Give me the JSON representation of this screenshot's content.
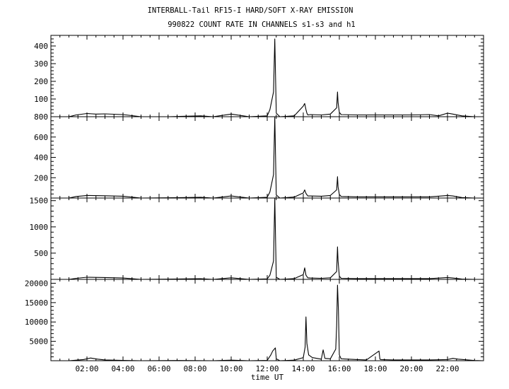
{
  "title": "INTERBALL-Tail RF15-I HARD/SOFT X-RAY EMISSION",
  "subtitle": "990822  COUNT RATE IN CHANNELS s1-s3 and h1",
  "chart_data": {
    "type": "line",
    "xlabel": "time UT",
    "xlim": [
      0.0,
      24.0
    ],
    "x_ticks": [
      2,
      4,
      6,
      8,
      10,
      12,
      14,
      16,
      18,
      20,
      22
    ],
    "x_tick_labels": [
      "02:00",
      "04:00",
      "06:00",
      "08:00",
      "10:00",
      "12:00",
      "14:00",
      "16:00",
      "18:00",
      "20:00",
      "22:00"
    ],
    "panels": [
      {
        "name": "s1",
        "ylim": [
          0,
          460
        ],
        "y_ticks": [
          100,
          200,
          300,
          400
        ],
        "y_tick_labels": [
          "100",
          "200",
          "300",
          "400"
        ],
        "x": [
          0.0,
          1.0,
          1.2,
          1.4,
          2.0,
          2.5,
          3.0,
          4.0,
          5.0,
          6.5,
          7.5,
          8.3,
          9.0,
          10.0,
          11.0,
          12.0,
          12.15,
          12.35,
          12.42,
          12.5,
          12.7,
          13.5,
          14.0,
          14.08,
          14.15,
          14.2,
          14.25,
          14.4,
          15.0,
          15.5,
          15.85,
          15.9,
          15.93,
          16.0,
          16.1,
          17.0,
          18.0,
          19.0,
          20.0,
          21.0,
          21.5,
          22.0,
          22.3,
          22.8,
          23.5,
          24.0
        ],
        "y": [
          0,
          0,
          5,
          10,
          18,
          15,
          16,
          12,
          0,
          0,
          3,
          5,
          0,
          15,
          0,
          5,
          40,
          140,
          440,
          20,
          0,
          5,
          60,
          75,
          40,
          20,
          10,
          12,
          10,
          15,
          50,
          140,
          80,
          25,
          12,
          10,
          10,
          10,
          10,
          12,
          5,
          20,
          15,
          5,
          0,
          0
        ]
      },
      {
        "name": "s2",
        "ylim": [
          0,
          800
        ],
        "y_ticks": [
          200,
          400,
          600,
          800
        ],
        "y_tick_labels": [
          "200",
          "400",
          "600",
          "800"
        ],
        "x": [
          0.0,
          1.0,
          1.4,
          2.0,
          3.0,
          4.0,
          5.0,
          7.5,
          8.3,
          9.0,
          10.0,
          11.0,
          12.0,
          12.15,
          12.35,
          12.42,
          12.5,
          12.7,
          13.5,
          14.0,
          14.08,
          14.15,
          14.25,
          14.4,
          15.0,
          15.5,
          15.85,
          15.9,
          15.93,
          16.0,
          16.1,
          17.0,
          18.0,
          19.0,
          20.0,
          21.0,
          22.0,
          22.3,
          22.8,
          23.5,
          24.0
        ],
        "y": [
          0,
          0,
          15,
          25,
          22,
          18,
          0,
          5,
          8,
          0,
          20,
          0,
          8,
          60,
          230,
          800,
          30,
          0,
          10,
          50,
          80,
          45,
          20,
          20,
          18,
          25,
          80,
          210,
          110,
          35,
          15,
          12,
          12,
          12,
          12,
          12,
          25,
          20,
          5,
          0,
          0
        ]
      },
      {
        "name": "s3",
        "ylim": [
          0,
          1550
        ],
        "y_ticks": [
          500,
          1000,
          1500
        ],
        "y_tick_labels": [
          "500",
          "1000",
          "1500"
        ],
        "x": [
          0.0,
          1.0,
          1.4,
          2.0,
          3.0,
          4.0,
          5.0,
          7.5,
          8.3,
          9.0,
          10.0,
          11.0,
          12.0,
          12.15,
          12.35,
          12.42,
          12.5,
          12.7,
          13.5,
          14.0,
          14.08,
          14.15,
          14.25,
          14.4,
          15.0,
          15.5,
          15.85,
          15.9,
          15.93,
          16.0,
          16.1,
          17.0,
          18.0,
          19.0,
          20.0,
          21.0,
          22.0,
          22.3,
          22.8,
          23.5,
          24.0
        ],
        "y": [
          0,
          0,
          20,
          40,
          35,
          25,
          0,
          10,
          12,
          0,
          30,
          0,
          10,
          80,
          350,
          1550,
          40,
          0,
          15,
          90,
          220,
          80,
          30,
          25,
          20,
          30,
          150,
          620,
          350,
          60,
          20,
          15,
          15,
          15,
          15,
          15,
          35,
          25,
          5,
          0,
          0
        ]
      },
      {
        "name": "h1",
        "ylim": [
          0,
          21000
        ],
        "y_ticks": [
          5000,
          10000,
          15000,
          20000
        ],
        "y_tick_labels": [
          "5000",
          "10000",
          "15000",
          "20000"
        ],
        "x": [
          0.0,
          1.0,
          1.8,
          2.2,
          2.6,
          3.0,
          4.0,
          5.0,
          7.0,
          9.0,
          10.0,
          11.0,
          12.0,
          12.2,
          12.3,
          12.45,
          12.5,
          12.7,
          13.5,
          14.0,
          14.1,
          14.15,
          14.2,
          14.3,
          14.5,
          15.0,
          15.1,
          15.2,
          15.5,
          15.8,
          15.85,
          15.9,
          15.95,
          16.0,
          16.1,
          17.0,
          17.5,
          18.2,
          18.25,
          18.3,
          19.0,
          20.0,
          21.0,
          22.0,
          22.3,
          22.6,
          23.5,
          24.0
        ],
        "y": [
          0,
          0,
          300,
          700,
          400,
          200,
          100,
          0,
          50,
          0,
          150,
          0,
          100,
          1500,
          2500,
          3300,
          500,
          0,
          150,
          800,
          3500,
          11300,
          4500,
          1500,
          800,
          400,
          2800,
          600,
          500,
          3000,
          9000,
          19500,
          13000,
          1500,
          500,
          300,
          200,
          2500,
          400,
          300,
          200,
          200,
          200,
          300,
          600,
          400,
          50,
          0
        ]
      }
    ]
  }
}
